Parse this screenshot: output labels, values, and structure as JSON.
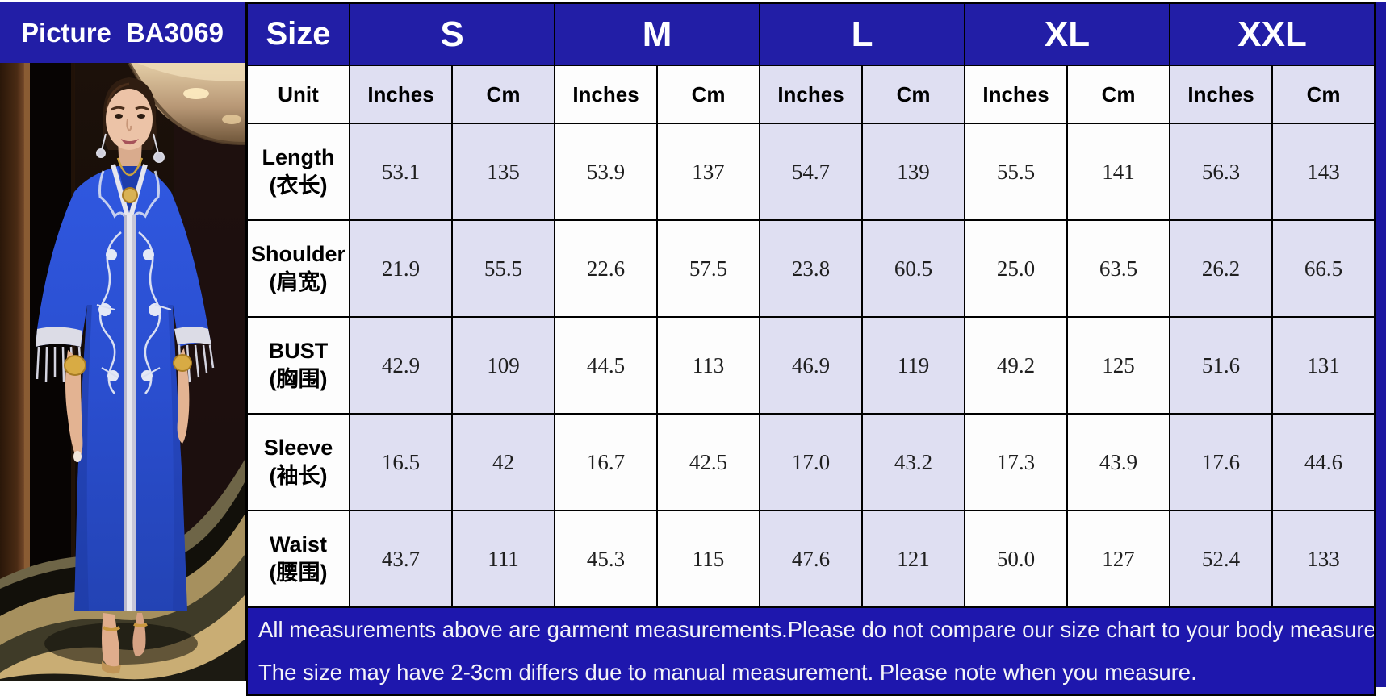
{
  "picture_panel": {
    "label": "Picture",
    "product_code": "BA3069",
    "photo_subject": "model wearing blue kaftan dress with silver embroidery"
  },
  "table": {
    "size_header_label": "Size",
    "unit_label": "Unit",
    "sizes": [
      "S",
      "M",
      "L",
      "XL",
      "XXL"
    ],
    "unit_columns": [
      "Inches",
      "Cm"
    ],
    "rows": [
      {
        "label_en": "Length",
        "label_zh": "(衣长)",
        "values": [
          [
            "53.1",
            "135"
          ],
          [
            "53.9",
            "137"
          ],
          [
            "54.7",
            "139"
          ],
          [
            "55.5",
            "141"
          ],
          [
            "56.3",
            "143"
          ]
        ]
      },
      {
        "label_en": "Shoulder",
        "label_zh": "(肩宽)",
        "values": [
          [
            "21.9",
            "55.5"
          ],
          [
            "22.6",
            "57.5"
          ],
          [
            "23.8",
            "60.5"
          ],
          [
            "25.0",
            "63.5"
          ],
          [
            "26.2",
            "66.5"
          ]
        ]
      },
      {
        "label_en": "BUST",
        "label_zh": "(胸围)",
        "values": [
          [
            "42.9",
            "109"
          ],
          [
            "44.5",
            "113"
          ],
          [
            "46.9",
            "119"
          ],
          [
            "49.2",
            "125"
          ],
          [
            "51.6",
            "131"
          ]
        ]
      },
      {
        "label_en": "Sleeve",
        "label_zh": "(袖长)",
        "values": [
          [
            "16.5",
            "42"
          ],
          [
            "16.7",
            "42.5"
          ],
          [
            "17.0",
            "43.2"
          ],
          [
            "17.3",
            "43.9"
          ],
          [
            "17.6",
            "44.6"
          ]
        ]
      },
      {
        "label_en": "Waist",
        "label_zh": "(腰围)",
        "values": [
          [
            "43.7",
            "111"
          ],
          [
            "45.3",
            "115"
          ],
          [
            "47.6",
            "121"
          ],
          [
            "50.0",
            "127"
          ],
          [
            "52.4",
            "133"
          ]
        ]
      }
    ]
  },
  "notes": {
    "line1": "All measurements above are garment measurements.Please do not compare our size chart to your body measurements.",
    "line2": "The size may have 2-3cm differs due to manual measurement. Please note when you measure."
  },
  "colors": {
    "header_blue": "#221ea6",
    "note_blue": "#1e17ad",
    "cell_lavender": "#dfdff2",
    "cell_white": "#fdfdfd",
    "border_black": "#000000",
    "dress_blue": "#2b52d4",
    "trim_silver": "#e6e6ee",
    "accent_gold": "#c89a3a"
  }
}
